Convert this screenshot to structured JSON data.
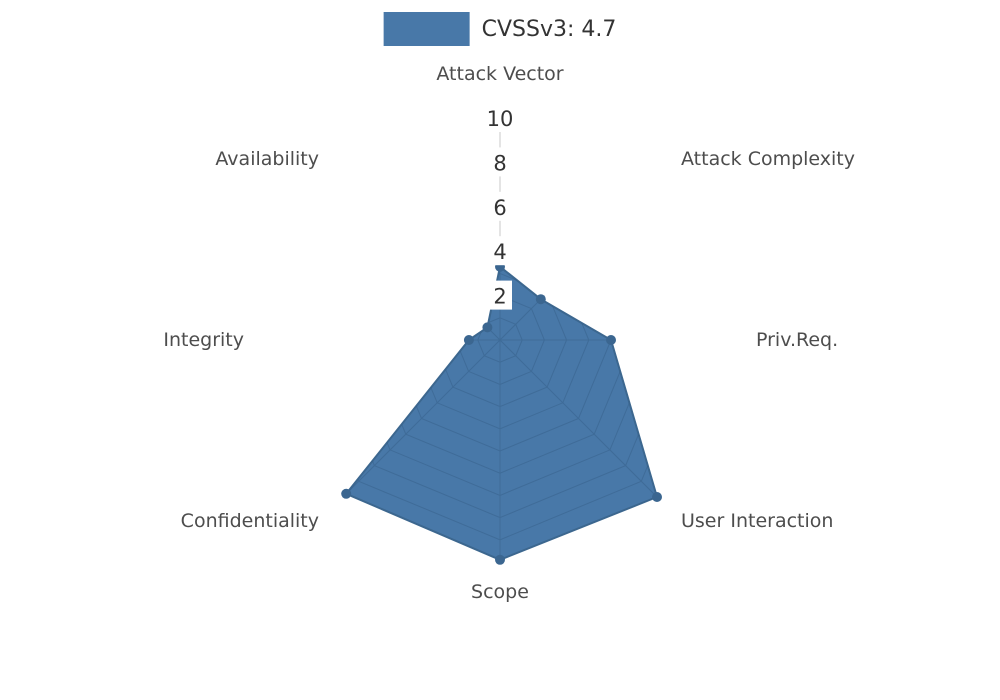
{
  "legend": {
    "label": "CVSSv3: 4.7",
    "swatch_color": "#4878a8"
  },
  "chart_data": {
    "type": "radar",
    "title": "CVSSv3: 4.7",
    "categories": [
      "Attack Vector",
      "Attack Complexity",
      "Priv.Req.",
      "User Interaction",
      "Scope",
      "Confidentiality",
      "Integrity",
      "Availability"
    ],
    "series": [
      {
        "name": "CVSSv3: 4.7",
        "values": [
          3.3,
          2.6,
          5.0,
          10.0,
          9.9,
          9.8,
          1.4,
          0.8
        ]
      }
    ],
    "rmax": 10,
    "tick_values": [
      2,
      4,
      6,
      8,
      10
    ],
    "legend_position": "top-center",
    "grid": "spider-web visible only inside filled series polygon",
    "colors": {
      "fill": "#4878a8",
      "stroke": "#3c678f",
      "point": "#3b6690",
      "web": "#355d86",
      "axis_line": "#c9c9c9",
      "tick_text": "#333333",
      "tick_box": "#ffffff",
      "label_text": "#4d4d4d",
      "background": "#ffffff"
    }
  }
}
